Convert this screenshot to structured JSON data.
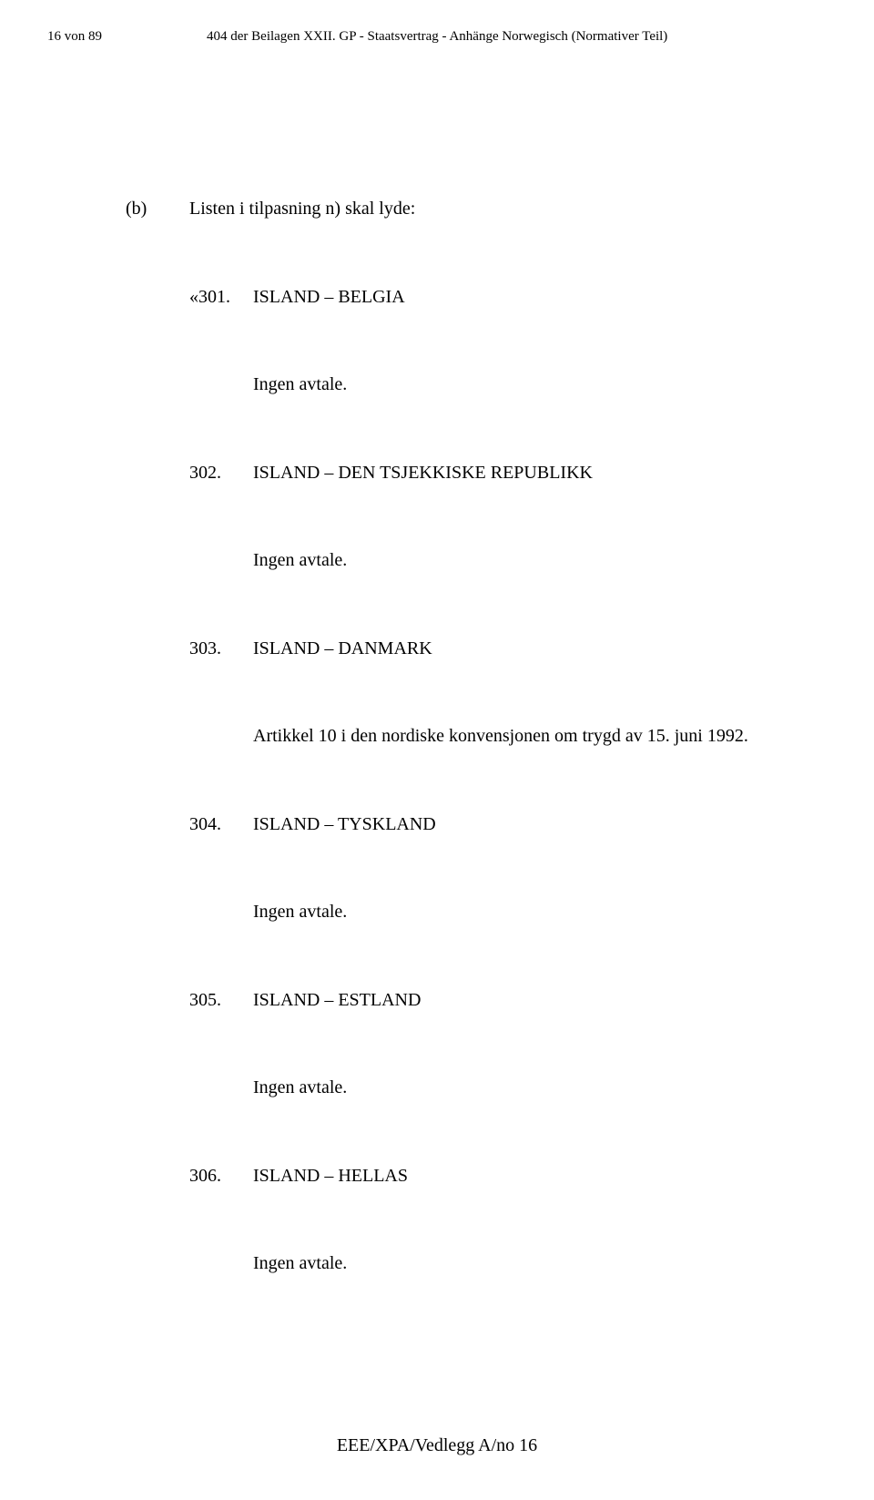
{
  "header": {
    "left": "16 von 89",
    "right": "404 der Beilagen XXII. GP - Staatsvertrag - Anhänge Norwegisch (Normativer Teil)"
  },
  "intro": {
    "marker": "(b)",
    "text": "Listen i tilpasning n) skal lyde:"
  },
  "entries": [
    {
      "number": "«301.",
      "title": "ISLAND – BELGIA",
      "body": "Ingen avtale."
    },
    {
      "number": "302.",
      "title": "ISLAND – DEN TSJEKKISKE REPUBLIKK",
      "body": "Ingen avtale."
    },
    {
      "number": "303.",
      "title": "ISLAND – DANMARK",
      "body": "Artikkel 10 i den nordiske konvensjonen om trygd av 15. juni 1992."
    },
    {
      "number": "304.",
      "title": "ISLAND – TYSKLAND",
      "body": "Ingen avtale."
    },
    {
      "number": "305.",
      "title": "ISLAND – ESTLAND",
      "body": "Ingen avtale."
    },
    {
      "number": "306.",
      "title": "ISLAND – HELLAS",
      "body": "Ingen avtale."
    }
  ],
  "footer": "EEE/XPA/Vedlegg A/no 16"
}
